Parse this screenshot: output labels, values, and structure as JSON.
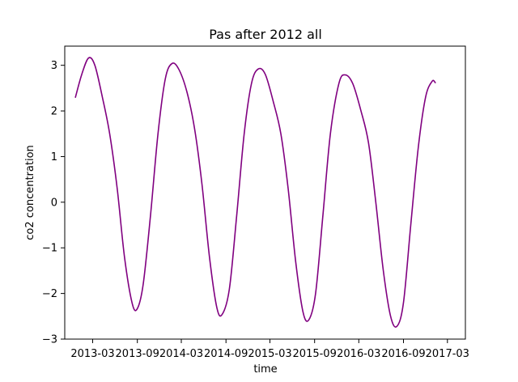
{
  "chart_data": {
    "type": "line",
    "title": "Pas after 2012 all",
    "xlabel": "time",
    "ylabel": "co2 concentration",
    "x_tick_labels": [
      "2013-03",
      "2013-09",
      "2014-03",
      "2014-09",
      "2015-03",
      "2015-09",
      "2016-03",
      "2016-09",
      "2017-03"
    ],
    "y_ticks": [
      -3,
      -2,
      -1,
      0,
      1,
      2,
      3
    ],
    "y_tick_labels": [
      "−3",
      "−2",
      "−1",
      "0",
      "1",
      "2",
      "3"
    ],
    "ylim": [
      -3.0,
      3.42
    ],
    "xlim": [
      "2012-11-06",
      "2017-05-14"
    ],
    "grid": false,
    "line_color": "#800080",
    "series": [
      {
        "values": [
          [
            "2012-12-20",
            2.3
          ],
          [
            "2013-01-15",
            2.8
          ],
          [
            "2013-02-12",
            3.16
          ],
          [
            "2013-03-10",
            3.0
          ],
          [
            "2013-04-10",
            2.3
          ],
          [
            "2013-05-10",
            1.5
          ],
          [
            "2013-06-10",
            0.3
          ],
          [
            "2013-07-10",
            -1.2
          ],
          [
            "2013-08-10",
            -2.2
          ],
          [
            "2013-08-31",
            -2.34
          ],
          [
            "2013-09-25",
            -1.8
          ],
          [
            "2013-10-25",
            -0.3
          ],
          [
            "2013-11-25",
            1.5
          ],
          [
            "2013-12-25",
            2.7
          ],
          [
            "2014-01-22",
            3.04
          ],
          [
            "2014-02-20",
            2.9
          ],
          [
            "2014-03-25",
            2.4
          ],
          [
            "2014-04-25",
            1.6
          ],
          [
            "2014-05-25",
            0.4
          ],
          [
            "2014-06-25",
            -1.2
          ],
          [
            "2014-07-25",
            -2.3
          ],
          [
            "2014-08-16",
            -2.46
          ],
          [
            "2014-09-15",
            -1.9
          ],
          [
            "2014-10-15",
            -0.3
          ],
          [
            "2014-11-15",
            1.5
          ],
          [
            "2014-12-15",
            2.6
          ],
          [
            "2015-01-12",
            2.92
          ],
          [
            "2015-02-10",
            2.8
          ],
          [
            "2015-03-15",
            2.2
          ],
          [
            "2015-04-15",
            1.5
          ],
          [
            "2015-05-15",
            0.3
          ],
          [
            "2015-06-15",
            -1.3
          ],
          [
            "2015-07-15",
            -2.4
          ],
          [
            "2015-08-08",
            -2.58
          ],
          [
            "2015-09-05",
            -2.0
          ],
          [
            "2015-10-05",
            -0.3
          ],
          [
            "2015-11-05",
            1.5
          ],
          [
            "2015-12-10",
            2.6
          ],
          [
            "2016-01-05",
            2.79
          ],
          [
            "2016-02-05",
            2.6
          ],
          [
            "2016-03-10",
            2.0
          ],
          [
            "2016-04-10",
            1.3
          ],
          [
            "2016-05-10",
            0.0
          ],
          [
            "2016-06-10",
            -1.5
          ],
          [
            "2016-07-10",
            -2.5
          ],
          [
            "2016-08-05",
            -2.72
          ],
          [
            "2016-09-01",
            -2.2
          ],
          [
            "2016-10-01",
            -0.5
          ],
          [
            "2016-11-01",
            1.2
          ],
          [
            "2016-12-01",
            2.3
          ],
          [
            "2016-12-28",
            2.65
          ],
          [
            "2017-01-10",
            2.62
          ]
        ]
      }
    ]
  }
}
